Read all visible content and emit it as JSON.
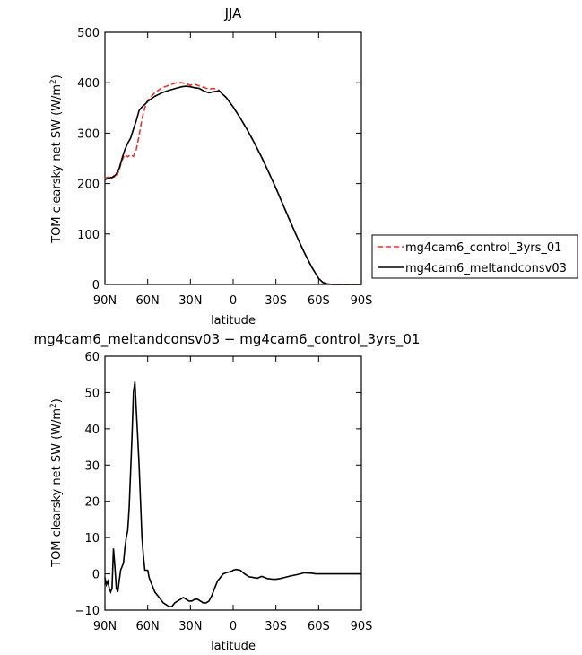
{
  "chart_data": [
    {
      "type": "line",
      "title": "JJA",
      "xlabel": "latitude",
      "ylabel_main": "TOM clearsky net SW (W/m",
      "ylabel_sup": "2",
      "ylabel_end": ")",
      "xlim": [
        90,
        -90
      ],
      "ylim": [
        0,
        500
      ],
      "x_ticks": [
        90,
        60,
        30,
        0,
        -30,
        -60,
        -90
      ],
      "x_tick_labels": [
        "90N",
        "60N",
        "30N",
        "0",
        "30S",
        "60S",
        "90S"
      ],
      "y_ticks": [
        0,
        100,
        200,
        300,
        400,
        500
      ],
      "y_tick_labels": [
        "0",
        "100",
        "200",
        "300",
        "400",
        "500"
      ],
      "legend_position": "right",
      "series": [
        {
          "name": "mg4cam6_control_3yrs_01",
          "color": "#e8322a",
          "dash": "dashed",
          "x": [
            90,
            88,
            86,
            84,
            82,
            80,
            78,
            76,
            74,
            72,
            70,
            68,
            66,
            64,
            62,
            60,
            55,
            50,
            45,
            40,
            36,
            33,
            30,
            27,
            24,
            20,
            17,
            14,
            10,
            5,
            0,
            -5,
            -10,
            -15,
            -20,
            -25,
            -30,
            -35,
            -40,
            -45,
            -50,
            -55,
            -60,
            -63,
            -66,
            -70,
            -75,
            -80,
            -85,
            -90
          ],
          "y": [
            210,
            213,
            208,
            215,
            212,
            228,
            246,
            258,
            253,
            257,
            254,
            268,
            295,
            328,
            350,
            365,
            380,
            390,
            395,
            400,
            400,
            398,
            395,
            397,
            394,
            390,
            387,
            389,
            385,
            371,
            352,
            330,
            306,
            280,
            252,
            222,
            191,
            158,
            125,
            93,
            63,
            35,
            12,
            4,
            1,
            0,
            0,
            0,
            0,
            0
          ]
        },
        {
          "name": "mg4cam6_meltandconsv03",
          "color": "#000000",
          "dash": "solid",
          "x": [
            90,
            88,
            86,
            84,
            82,
            80,
            78,
            76,
            74,
            72,
            70,
            68,
            66,
            64,
            62,
            60,
            55,
            50,
            45,
            40,
            36,
            33,
            30,
            27,
            24,
            20,
            17,
            14,
            10,
            5,
            0,
            -5,
            -10,
            -15,
            -20,
            -25,
            -30,
            -35,
            -40,
            -45,
            -50,
            -55,
            -60,
            -63,
            -66,
            -70,
            -75,
            -80,
            -85,
            -90
          ],
          "y": [
            208,
            210,
            212,
            213,
            219,
            230,
            250,
            267,
            280,
            290,
            308,
            325,
            345,
            352,
            357,
            363,
            373,
            380,
            385,
            389,
            392,
            393,
            392,
            390,
            389,
            383,
            380,
            382,
            384,
            371,
            352,
            330,
            306,
            280,
            252,
            222,
            191,
            158,
            125,
            93,
            63,
            35,
            12,
            4,
            1,
            0,
            0,
            0,
            0,
            0
          ]
        }
      ]
    },
    {
      "type": "line",
      "title": "mg4cam6_meltandconsv03 − mg4cam6_control_3yrs_01",
      "xlabel": "latitude",
      "ylabel_main": "TOM clearsky net SW (W/m",
      "ylabel_sup": "2",
      "ylabel_end": ")",
      "xlim": [
        90,
        -90
      ],
      "ylim": [
        -10,
        60
      ],
      "x_ticks": [
        90,
        60,
        30,
        0,
        -30,
        -60,
        -90
      ],
      "x_tick_labels": [
        "90N",
        "60N",
        "30N",
        "0",
        "30S",
        "60S",
        "90S"
      ],
      "y_ticks": [
        -10,
        0,
        10,
        20,
        30,
        40,
        50,
        60
      ],
      "y_tick_labels": [
        "−10",
        "0",
        "10",
        "20",
        "30",
        "40",
        "50",
        "60"
      ],
      "series": [
        {
          "color": "#000000",
          "dash": "solid",
          "x": [
            90,
            89,
            88,
            87,
            86,
            85,
            84,
            83,
            82,
            81,
            80,
            79,
            78,
            77,
            76,
            75,
            74,
            73,
            72,
            71,
            70,
            69,
            68,
            67,
            66,
            65,
            64,
            63,
            62,
            61,
            60,
            59,
            58,
            57,
            56,
            55,
            53,
            51,
            49,
            47,
            45,
            43,
            41,
            39,
            37,
            35,
            33,
            31,
            29,
            27,
            25,
            23,
            21,
            19,
            17,
            15,
            13,
            11,
            9,
            7,
            5,
            3,
            1,
            0,
            -2,
            -5,
            -8,
            -11,
            -14,
            -17,
            -20,
            -22,
            -24,
            -26,
            -28,
            -30,
            -33,
            -36,
            -40,
            -45,
            -50,
            -55,
            -58,
            -61,
            -65,
            -70,
            -75,
            -80,
            -85,
            -90
          ],
          "y": [
            -1,
            -3,
            -2,
            -4,
            -5,
            -4,
            7,
            2,
            -4,
            -5,
            -2,
            1,
            2,
            3,
            7,
            10,
            12,
            18,
            28,
            38,
            50,
            53,
            45,
            38,
            30,
            20,
            10,
            5,
            1,
            1,
            1,
            -1,
            -2,
            -3,
            -4,
            -5,
            -6,
            -7,
            -8,
            -8.5,
            -9,
            -9,
            -8,
            -7.5,
            -7,
            -6.5,
            -7,
            -7.5,
            -7.5,
            -7,
            -7,
            -7.5,
            -8,
            -8,
            -7.5,
            -6,
            -4,
            -2,
            -1,
            0,
            0.3,
            0.5,
            0.7,
            1.0,
            1.2,
            1.0,
            0.0,
            -0.8,
            -1.0,
            -1.2,
            -0.7,
            -1.0,
            -1.3,
            -1.4,
            -1.5,
            -1.5,
            -1.3,
            -1.0,
            -0.6,
            -0.2,
            0.3,
            0.2,
            0.0,
            0.0,
            0.0,
            0.0,
            0.0,
            0.0,
            0.0,
            0.0
          ]
        }
      ]
    }
  ]
}
